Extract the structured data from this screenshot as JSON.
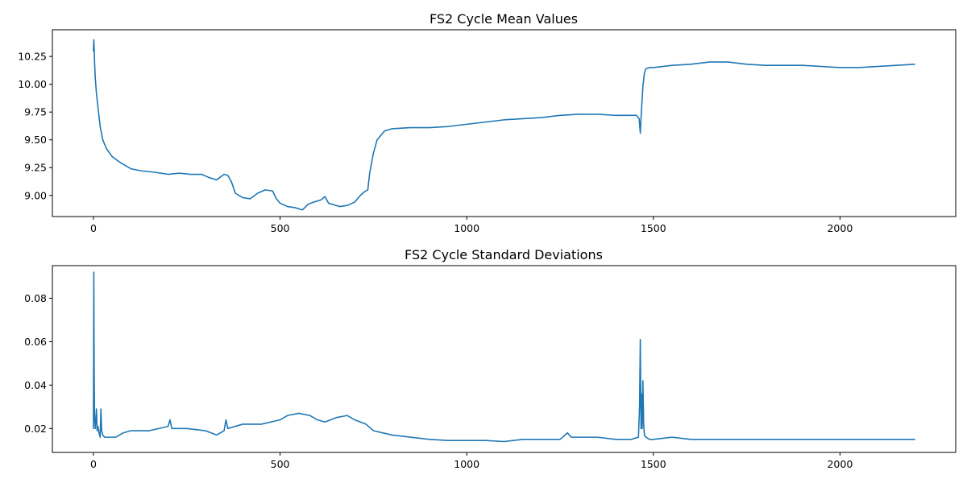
{
  "colors": {
    "series": "#1f77b4",
    "axis": "#000000",
    "background": "#ffffff"
  },
  "chart_data": [
    {
      "type": "line",
      "title": "FS2 Cycle Mean Values",
      "xlabel": "",
      "ylabel": "",
      "grid": false,
      "xlim": [
        -110,
        2310
      ],
      "ylim": [
        8.81,
        10.49
      ],
      "xticks": [
        0,
        500,
        1000,
        1500,
        2000
      ],
      "yticks": [
        9.0,
        9.25,
        9.5,
        9.75,
        10.0,
        10.25
      ],
      "xtick_labels": [
        "0",
        "500",
        "1000",
        "1500",
        "2000"
      ],
      "ytick_labels": [
        "9.00",
        "9.25",
        "9.50",
        "9.75",
        "10.00",
        "10.25"
      ],
      "series": [
        {
          "x": [
            0,
            1,
            2,
            3,
            5,
            8,
            12,
            18,
            25,
            35,
            50,
            70,
            100,
            130,
            160,
            200,
            230,
            260,
            290,
            310,
            330,
            350,
            360,
            370,
            380,
            400,
            420,
            440,
            460,
            480,
            490,
            500,
            520,
            540,
            550,
            560,
            575,
            590,
            610,
            620,
            630,
            660,
            680,
            700,
            715,
            725,
            730,
            735,
            740,
            750,
            760,
            780,
            800,
            850,
            900,
            950,
            1000,
            1050,
            1100,
            1150,
            1200,
            1250,
            1300,
            1350,
            1400,
            1440,
            1455,
            1462,
            1465,
            1468,
            1472,
            1476,
            1480,
            1490,
            1500,
            1550,
            1600,
            1650,
            1700,
            1750,
            1800,
            1850,
            1900,
            1950,
            2000,
            2050,
            2100,
            2150,
            2200
          ],
          "y": [
            10.3,
            10.4,
            10.33,
            10.2,
            10.05,
            9.92,
            9.8,
            9.62,
            9.5,
            9.42,
            9.35,
            9.3,
            9.24,
            9.22,
            9.21,
            9.19,
            9.2,
            9.19,
            9.19,
            9.16,
            9.14,
            9.19,
            9.18,
            9.12,
            9.02,
            8.98,
            8.97,
            9.02,
            9.05,
            9.04,
            8.97,
            8.93,
            8.9,
            8.89,
            8.88,
            8.87,
            8.92,
            8.94,
            8.96,
            8.99,
            8.93,
            8.9,
            8.91,
            8.94,
            9.0,
            9.03,
            9.04,
            9.05,
            9.2,
            9.38,
            9.5,
            9.58,
            9.6,
            9.61,
            9.61,
            9.62,
            9.64,
            9.66,
            9.68,
            9.69,
            9.7,
            9.72,
            9.73,
            9.73,
            9.72,
            9.72,
            9.72,
            9.69,
            9.56,
            9.76,
            9.98,
            10.1,
            10.14,
            10.15,
            10.15,
            10.17,
            10.18,
            10.2,
            10.2,
            10.18,
            10.17,
            10.17,
            10.17,
            10.16,
            10.15,
            10.15,
            10.16,
            10.17,
            10.18
          ]
        }
      ]
    },
    {
      "type": "line",
      "title": "FS2 Cycle Standard Deviations",
      "xlabel": "",
      "ylabel": "",
      "grid": false,
      "xlim": [
        -110,
        2310
      ],
      "ylim": [
        0.009,
        0.095
      ],
      "xticks": [
        0,
        500,
        1000,
        1500,
        2000
      ],
      "yticks": [
        0.02,
        0.04,
        0.06,
        0.08
      ],
      "xtick_labels": [
        "0",
        "500",
        "1000",
        "1500",
        "2000"
      ],
      "ytick_labels": [
        "0.02",
        "0.04",
        "0.06",
        "0.08"
      ],
      "series": [
        {
          "x": [
            0,
            1,
            2,
            3,
            5,
            8,
            10,
            12,
            15,
            18,
            20,
            22,
            25,
            30,
            40,
            60,
            80,
            100,
            150,
            200,
            205,
            210,
            250,
            300,
            330,
            350,
            355,
            360,
            400,
            450,
            500,
            520,
            550,
            580,
            600,
            620,
            650,
            680,
            700,
            730,
            750,
            800,
            850,
            900,
            950,
            1000,
            1050,
            1100,
            1150,
            1200,
            1250,
            1270,
            1280,
            1300,
            1350,
            1400,
            1440,
            1460,
            1463,
            1465,
            1467,
            1468,
            1470,
            1472,
            1474,
            1476,
            1480,
            1490,
            1500,
            1550,
            1600,
            1650,
            1700,
            1750,
            1800,
            1850,
            1900,
            1950,
            2000,
            2050,
            2100,
            2150,
            2200
          ],
          "y": [
            0.02,
            0.092,
            0.045,
            0.025,
            0.02,
            0.029,
            0.019,
            0.021,
            0.018,
            0.016,
            0.029,
            0.019,
            0.017,
            0.016,
            0.016,
            0.016,
            0.018,
            0.019,
            0.019,
            0.021,
            0.024,
            0.02,
            0.02,
            0.019,
            0.017,
            0.019,
            0.024,
            0.02,
            0.022,
            0.022,
            0.024,
            0.026,
            0.027,
            0.026,
            0.024,
            0.023,
            0.025,
            0.026,
            0.024,
            0.022,
            0.019,
            0.017,
            0.016,
            0.015,
            0.0145,
            0.0145,
            0.0145,
            0.014,
            0.015,
            0.015,
            0.015,
            0.018,
            0.016,
            0.016,
            0.016,
            0.015,
            0.015,
            0.016,
            0.03,
            0.061,
            0.02,
            0.036,
            0.02,
            0.042,
            0.022,
            0.017,
            0.016,
            0.015,
            0.015,
            0.016,
            0.015,
            0.015,
            0.015,
            0.015,
            0.015,
            0.015,
            0.015,
            0.015,
            0.015,
            0.015,
            0.015,
            0.015,
            0.015
          ]
        }
      ]
    }
  ]
}
